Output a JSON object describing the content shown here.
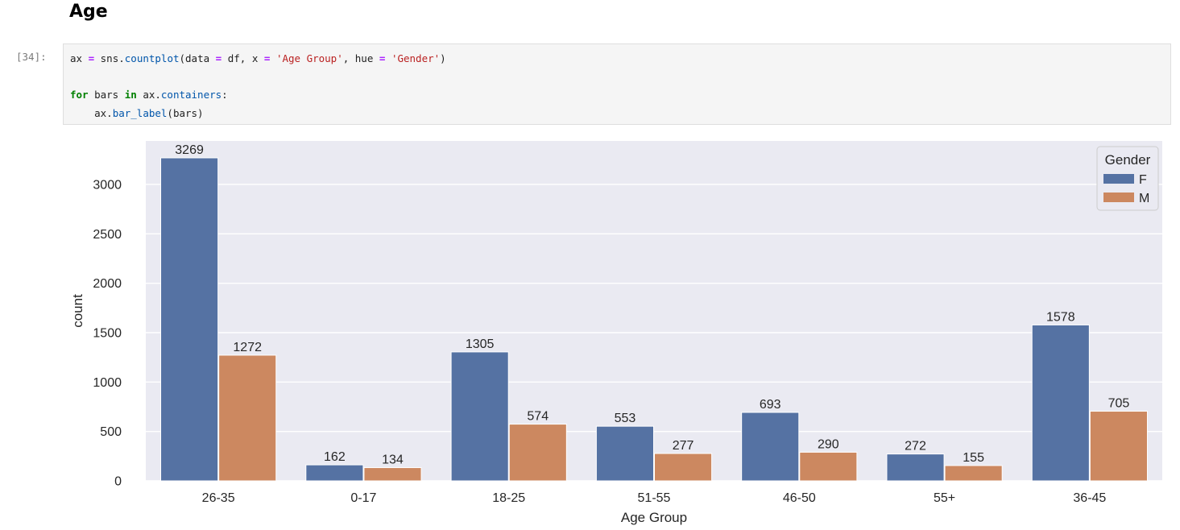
{
  "notebook": {
    "heading": "Age",
    "prompt": "[34]:",
    "code": {
      "l1": {
        "ax": "ax",
        "eq": "=",
        "sns": "sns.",
        "fn": "countplot",
        "args1": "(data ",
        "eq2": "=",
        "args2": " df, x ",
        "eq3": "=",
        "sp": " ",
        "str1": "'Age Group'",
        "args3": ", hue ",
        "eq4": "=",
        "sp2": " ",
        "str2": "'Gender'",
        "close": ")"
      },
      "l3": {
        "for": "for",
        "mid": " bars ",
        "in": "in",
        "obj": " ax.",
        "attr": "containers",
        "colon": ":"
      },
      "l4": {
        "indent": "    ax.",
        "fn": "bar_label",
        "args": "(bars)"
      }
    }
  },
  "chart_data": {
    "type": "bar",
    "categories": [
      "26-35",
      "0-17",
      "18-25",
      "51-55",
      "46-50",
      "55+",
      "36-45"
    ],
    "series": [
      {
        "name": "F",
        "color": "#5572a3",
        "values": [
          3269,
          162,
          1305,
          553,
          693,
          272,
          1578
        ]
      },
      {
        "name": "M",
        "color": "#cc8860",
        "values": [
          1272,
          134,
          574,
          277,
          290,
          155,
          705
        ]
      }
    ],
    "xlabel": "Age Group",
    "ylabel": "count",
    "ylim": [
      0,
      3440
    ],
    "yticks": [
      0,
      500,
      1000,
      1500,
      2000,
      2500,
      3000
    ],
    "grid": true,
    "legend": {
      "title": "Gender",
      "position": "top-right"
    },
    "background": "#eaeaf2"
  }
}
